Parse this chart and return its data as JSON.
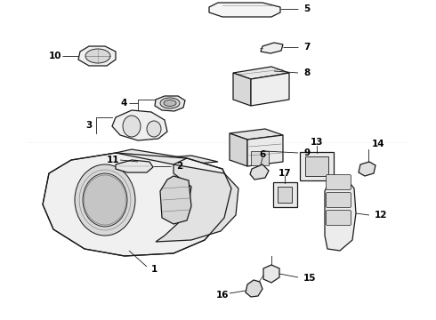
{
  "bg_color": "#ffffff",
  "line_color": "#1a1a1a",
  "label_color": "#000000",
  "lw": 0.9,
  "fig_w": 4.9,
  "fig_h": 3.6,
  "dpi": 100
}
